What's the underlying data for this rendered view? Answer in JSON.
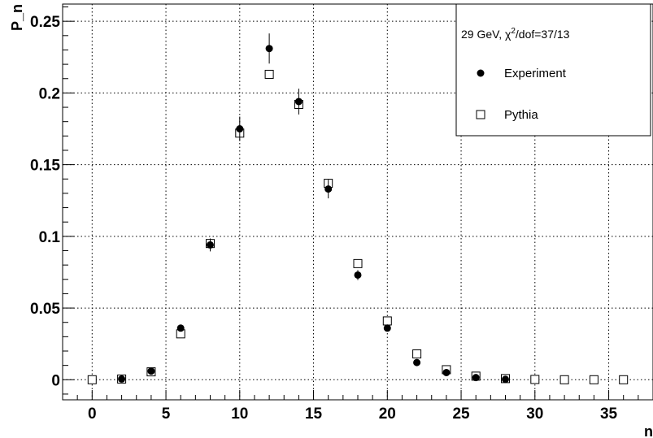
{
  "chart_data": {
    "type": "scatter",
    "title": "",
    "xlabel": "n",
    "ylabel": "P_n",
    "xlim": [
      -2,
      38
    ],
    "ylim": [
      -0.014,
      0.262
    ],
    "x_ticks": [
      0,
      5,
      10,
      15,
      20,
      25,
      30,
      35
    ],
    "y_ticks": [
      0,
      0.05,
      0.1,
      0.15,
      0.2,
      0.25
    ],
    "x_tick_labels": [
      "0",
      "5",
      "10",
      "15",
      "20",
      "25",
      "30",
      "35"
    ],
    "y_tick_labels": [
      "0",
      "0.05",
      "0.1",
      "0.15",
      "0.2",
      "0.25"
    ],
    "grid": true,
    "legend": {
      "placement": "top-right",
      "header_prefix": "29 GeV, χ",
      "header_sup": "2",
      "header_suffix": "/dof=37/13",
      "entries": [
        "Experiment",
        "Pythia"
      ]
    },
    "series": [
      {
        "name": "Experiment",
        "marker": "filled-circle",
        "x": [
          2,
          4,
          6,
          8,
          10,
          12,
          14,
          16,
          18,
          20,
          22,
          24,
          26,
          28
        ],
        "y": [
          0.0005,
          0.006,
          0.036,
          0.094,
          0.175,
          0.231,
          0.194,
          0.133,
          0.073,
          0.036,
          0.012,
          0.005,
          0.0015,
          0.0003
        ],
        "err": [
          0.0005,
          0.0015,
          0.002,
          0.0045,
          0.0085,
          0.0105,
          0.009,
          0.0065,
          0.0035,
          0.002,
          0.001,
          0.0008,
          0.0005,
          0.0003
        ]
      },
      {
        "name": "Pythia",
        "marker": "open-square",
        "x": [
          0,
          2,
          4,
          6,
          8,
          10,
          12,
          14,
          16,
          18,
          20,
          22,
          24,
          26,
          28,
          30,
          32,
          34,
          36
        ],
        "y": [
          0,
          0.0005,
          0.0055,
          0.032,
          0.095,
          0.172,
          0.213,
          0.192,
          0.137,
          0.081,
          0.041,
          0.018,
          0.007,
          0.0025,
          0.0008,
          0.0002,
          0,
          0,
          0
        ]
      }
    ]
  }
}
